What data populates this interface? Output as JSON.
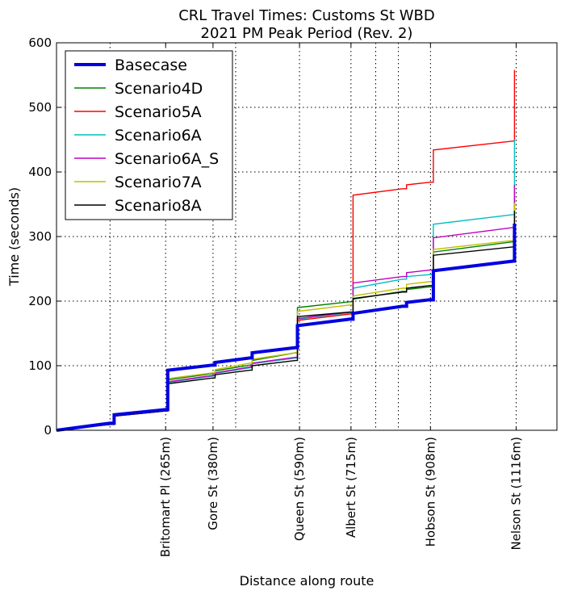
{
  "chart_data": {
    "type": "line",
    "title_lines": [
      "CRL Travel Times: Customs St WBD",
      "2021 PM Peak Period (Rev. 2)"
    ],
    "xlabel": "Distance along route",
    "ylabel": "Time (seconds)",
    "xlim": [
      0,
      1215
    ],
    "ylim": [
      0,
      600
    ],
    "grid": true,
    "legend_position": "top-left",
    "y_ticks": [
      0,
      100,
      200,
      300,
      400,
      500,
      600
    ],
    "x_gridlines": [
      130,
      265,
      380,
      435,
      590,
      715,
      775,
      830,
      908,
      1116
    ],
    "x_ticks": [
      {
        "x": 265,
        "label": "Britomart Pl (265m)"
      },
      {
        "x": 380,
        "label": "Gore St (380m)"
      },
      {
        "x": 590,
        "label": "Queen St (590m)"
      },
      {
        "x": 715,
        "label": "Albert St (715m)"
      },
      {
        "x": 908,
        "label": "Hobson St (908m)"
      },
      {
        "x": 1116,
        "label": "Nelson St (1116m)"
      }
    ],
    "series": [
      {
        "name": "Basecase",
        "color": "#0000e0",
        "width": 4,
        "points": [
          [
            0,
            0
          ],
          [
            130,
            11
          ],
          [
            140,
            11
          ],
          [
            140,
            24
          ],
          [
            265,
            32
          ],
          [
            270,
            32
          ],
          [
            270,
            93
          ],
          [
            380,
            101
          ],
          [
            385,
            101
          ],
          [
            385,
            105
          ],
          [
            470,
            112
          ],
          [
            475,
            112
          ],
          [
            475,
            120
          ],
          [
            580,
            128
          ],
          [
            585,
            128
          ],
          [
            585,
            162
          ],
          [
            712,
            172
          ],
          [
            720,
            172
          ],
          [
            720,
            181
          ],
          [
            840,
            192
          ],
          [
            850,
            192
          ],
          [
            850,
            198
          ],
          [
            905,
            202
          ],
          [
            915,
            202
          ],
          [
            915,
            247
          ],
          [
            1110,
            262
          ],
          [
            1112,
            262
          ],
          [
            1112,
            320
          ]
        ]
      },
      {
        "name": "Scenario4D",
        "color": "#008000",
        "width": 1.4,
        "points": [
          [
            0,
            0
          ],
          [
            130,
            10
          ],
          [
            140,
            10
          ],
          [
            140,
            23
          ],
          [
            265,
            31
          ],
          [
            270,
            31
          ],
          [
            270,
            78
          ],
          [
            380,
            88
          ],
          [
            385,
            88
          ],
          [
            385,
            92
          ],
          [
            470,
            101
          ],
          [
            475,
            101
          ],
          [
            475,
            108
          ],
          [
            580,
            120
          ],
          [
            585,
            120
          ],
          [
            585,
            190
          ],
          [
            712,
            199
          ],
          [
            720,
            199
          ],
          [
            720,
            203
          ],
          [
            840,
            215
          ],
          [
            850,
            215
          ],
          [
            850,
            218
          ],
          [
            905,
            222
          ],
          [
            915,
            222
          ],
          [
            915,
            276
          ],
          [
            1110,
            292
          ],
          [
            1112,
            292
          ],
          [
            1112,
            360
          ]
        ]
      },
      {
        "name": "Scenario5A",
        "color": "#ff0000",
        "width": 1.4,
        "points": [
          [
            0,
            0
          ],
          [
            130,
            9
          ],
          [
            140,
            9
          ],
          [
            140,
            22
          ],
          [
            265,
            30
          ],
          [
            270,
            30
          ],
          [
            270,
            74
          ],
          [
            380,
            84
          ],
          [
            385,
            84
          ],
          [
            385,
            88
          ],
          [
            470,
            97
          ],
          [
            475,
            97
          ],
          [
            475,
            103
          ],
          [
            580,
            112
          ],
          [
            585,
            112
          ],
          [
            585,
            170
          ],
          [
            712,
            180
          ],
          [
            720,
            180
          ],
          [
            720,
            364
          ],
          [
            840,
            374
          ],
          [
            850,
            374
          ],
          [
            850,
            380
          ],
          [
            905,
            384
          ],
          [
            915,
            384
          ],
          [
            915,
            434
          ],
          [
            1110,
            448
          ],
          [
            1112,
            448
          ],
          [
            1112,
            558
          ]
        ]
      },
      {
        "name": "Scenario6A",
        "color": "#00bfbf",
        "width": 1.4,
        "points": [
          [
            0,
            0
          ],
          [
            130,
            9
          ],
          [
            140,
            9
          ],
          [
            140,
            22
          ],
          [
            265,
            30
          ],
          [
            270,
            30
          ],
          [
            270,
            74
          ],
          [
            380,
            84
          ],
          [
            385,
            84
          ],
          [
            385,
            88
          ],
          [
            470,
            97
          ],
          [
            475,
            97
          ],
          [
            475,
            103
          ],
          [
            580,
            112
          ],
          [
            585,
            112
          ],
          [
            585,
            172
          ],
          [
            712,
            182
          ],
          [
            720,
            182
          ],
          [
            720,
            220
          ],
          [
            840,
            234
          ],
          [
            850,
            234
          ],
          [
            850,
            238
          ],
          [
            905,
            241
          ],
          [
            915,
            241
          ],
          [
            915,
            319
          ],
          [
            1110,
            334
          ],
          [
            1112,
            334
          ],
          [
            1112,
            450
          ]
        ]
      },
      {
        "name": "Scenario6A_S",
        "color": "#bf00bf",
        "width": 1.4,
        "points": [
          [
            0,
            0
          ],
          [
            130,
            9
          ],
          [
            140,
            9
          ],
          [
            140,
            22
          ],
          [
            265,
            30
          ],
          [
            270,
            30
          ],
          [
            270,
            75
          ],
          [
            380,
            85
          ],
          [
            385,
            85
          ],
          [
            385,
            89
          ],
          [
            470,
            98
          ],
          [
            475,
            98
          ],
          [
            475,
            104
          ],
          [
            580,
            113
          ],
          [
            585,
            113
          ],
          [
            585,
            173
          ],
          [
            712,
            183
          ],
          [
            720,
            183
          ],
          [
            720,
            228
          ],
          [
            840,
            238
          ],
          [
            850,
            238
          ],
          [
            850,
            244
          ],
          [
            905,
            248
          ],
          [
            915,
            248
          ],
          [
            915,
            298
          ],
          [
            1110,
            314
          ],
          [
            1112,
            314
          ],
          [
            1112,
            380
          ]
        ]
      },
      {
        "name": "Scenario7A",
        "color": "#bfbf00",
        "width": 1.4,
        "points": [
          [
            0,
            0
          ],
          [
            130,
            10
          ],
          [
            140,
            10
          ],
          [
            140,
            23
          ],
          [
            265,
            31
          ],
          [
            270,
            31
          ],
          [
            270,
            80
          ],
          [
            380,
            89
          ],
          [
            385,
            89
          ],
          [
            385,
            94
          ],
          [
            470,
            104
          ],
          [
            475,
            104
          ],
          [
            475,
            110
          ],
          [
            580,
            120
          ],
          [
            585,
            120
          ],
          [
            585,
            184
          ],
          [
            712,
            194
          ],
          [
            720,
            194
          ],
          [
            720,
            208
          ],
          [
            840,
            220
          ],
          [
            850,
            220
          ],
          [
            850,
            226
          ],
          [
            905,
            230
          ],
          [
            915,
            230
          ],
          [
            915,
            280
          ],
          [
            1110,
            294
          ],
          [
            1112,
            294
          ],
          [
            1112,
            352
          ]
        ]
      },
      {
        "name": "Scenario8A",
        "color": "#000000",
        "width": 1.4,
        "points": [
          [
            0,
            0
          ],
          [
            130,
            9
          ],
          [
            140,
            9
          ],
          [
            140,
            22
          ],
          [
            265,
            30
          ],
          [
            270,
            30
          ],
          [
            270,
            72
          ],
          [
            380,
            81
          ],
          [
            385,
            81
          ],
          [
            385,
            86
          ],
          [
            470,
            93
          ],
          [
            475,
            93
          ],
          [
            475,
            100
          ],
          [
            580,
            108
          ],
          [
            585,
            108
          ],
          [
            585,
            176
          ],
          [
            712,
            183
          ],
          [
            720,
            183
          ],
          [
            720,
            204
          ],
          [
            840,
            214
          ],
          [
            850,
            214
          ],
          [
            850,
            220
          ],
          [
            905,
            224
          ],
          [
            915,
            224
          ],
          [
            915,
            271
          ],
          [
            1110,
            284
          ],
          [
            1112,
            284
          ],
          [
            1112,
            340
          ]
        ]
      }
    ]
  }
}
